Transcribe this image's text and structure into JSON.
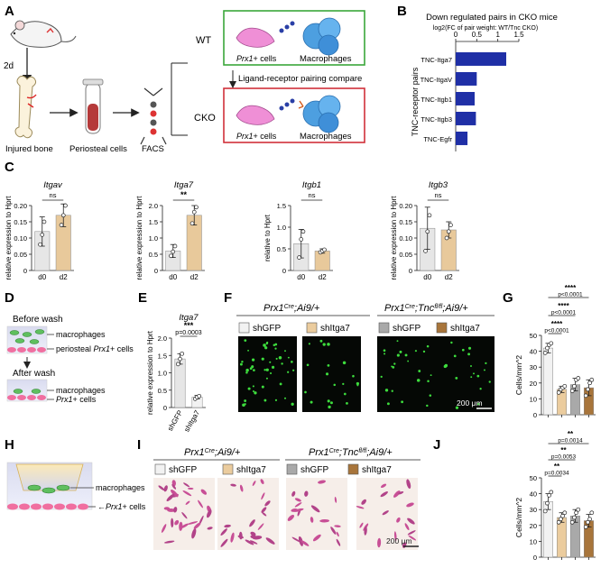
{
  "panels": {
    "A": {
      "label": "A",
      "days": "2d",
      "injured_bone": "Injured bone",
      "periosteal_cells": "Periosteal cells",
      "facs": "FACS",
      "wt": "WT",
      "cko": "CKO",
      "prx1_cells": "Prx1+ cells",
      "macrophages": "Macrophages",
      "compare": "Ligand-receptor pairing compare"
    },
    "B": {
      "label": "B"
    },
    "C": {
      "label": "C",
      "genes": [
        "Itgav",
        "Itga7",
        "Itgb1",
        "Itgb3"
      ]
    },
    "D": {
      "label": "D",
      "before_wash": "Before wash",
      "after_wash": "After wash",
      "macrophages": "macrophages",
      "periosteal_prx1": "periosteal Prx1+ cells",
      "prx1_cells": "Prx1+ cells"
    },
    "E": {
      "label": "E",
      "gene": "Itga7"
    },
    "F": {
      "label": "F",
      "group1": "Prx1Cre;Ai9/+",
      "group2": "Prx1Cre;Tncfl/fl;Ai9/+",
      "legend": [
        "shGFP",
        "shItga7",
        "shGFP",
        "shItga7"
      ],
      "scale": "200 μm"
    },
    "G": {
      "label": "G"
    },
    "H": {
      "label": "H",
      "macrophages": "macrophages",
      "prx1_cells": "Prx1+ cells"
    },
    "I": {
      "label": "I",
      "group1": "Prx1Cre;Ai9/+",
      "group2": "Prx1Cre;Tncfl/fl;Ai9/+",
      "legend": [
        "shGFP",
        "shItga7",
        "shGFP",
        "shItga7"
      ],
      "scale": "200 μm"
    },
    "J": {
      "label": "J"
    }
  },
  "colors": {
    "d0": "#e6e6e6",
    "d2": "#e8c99b",
    "bar_blue": "#1f2fa6",
    "shGFP_ctrl": "#f2f2f2",
    "shItga7_ctrl": "#ebcc9e",
    "shGFP_cko": "#a9a9a9",
    "shItga7_cko": "#a8753b",
    "wt_box": "#3aa63a",
    "cko_box": "#d0303a"
  },
  "chart_data": [
    {
      "id": "B",
      "type": "bar",
      "orientation": "horizontal",
      "title": "Down regulated pairs in CKO mice",
      "subtitle": "log2(FC of pair weight: WT/Tnc CKO)",
      "ylabel": "TNC-receptor pairs",
      "categories": [
        "TNC-Itga7",
        "TNC-ItgaV",
        "TNC-Itgb1",
        "TNC-Itgb3",
        "TNC-Egfr"
      ],
      "values": [
        1.2,
        0.5,
        0.45,
        0.48,
        0.28
      ],
      "xlim": [
        0,
        1.5
      ],
      "xticks": [
        "0",
        "0.5",
        "1",
        "1.5"
      ]
    },
    {
      "id": "C1",
      "type": "bar",
      "title": "Itgav",
      "ylabel": "relative expression  to Hprt",
      "categories": [
        "d0",
        "d2"
      ],
      "values": [
        0.12,
        0.17
      ],
      "errors": [
        0.045,
        0.035
      ],
      "points": [
        [
          0.08,
          0.11,
          0.15
        ],
        [
          0.14,
          0.17,
          0.2
        ]
      ],
      "ylim": [
        0,
        0.2
      ],
      "yticks": [
        "0",
        "0.05",
        "0.10",
        "0.15",
        "0.20"
      ],
      "sig": "ns"
    },
    {
      "id": "C2",
      "type": "bar",
      "title": "Itga7",
      "ylabel": "relative expression  to Hprt",
      "categories": [
        "d0",
        "d2"
      ],
      "values": [
        0.6,
        1.7
      ],
      "errors": [
        0.2,
        0.3
      ],
      "points": [
        [
          0.45,
          0.58,
          0.75
        ],
        [
          1.45,
          1.8,
          1.95
        ]
      ],
      "ylim": [
        0,
        2.0
      ],
      "yticks": [
        "0",
        "0.5",
        "1.0",
        "1.5",
        "2.0"
      ],
      "sig": "**"
    },
    {
      "id": "C3",
      "type": "bar",
      "title": "Itgb1",
      "ylabel": "relative        to Hprt",
      "categories": [
        "d0",
        "d2"
      ],
      "values": [
        0.62,
        0.45
      ],
      "errors": [
        0.33,
        0.05
      ],
      "points": [
        [
          0.3,
          0.72,
          0.9
        ],
        [
          0.42,
          0.45,
          0.48
        ]
      ],
      "ylim": [
        0,
        1.5
      ],
      "yticks": [
        "0",
        "0.5",
        "1.0",
        "1.5"
      ],
      "sig": "ns"
    },
    {
      "id": "C4",
      "type": "bar",
      "title": "Itgb3",
      "ylabel": "relative expression  to Hprt",
      "categories": [
        "d0",
        "d2"
      ],
      "values": [
        0.13,
        0.125
      ],
      "errors": [
        0.065,
        0.025
      ],
      "points": [
        [
          0.06,
          0.12,
          0.17
        ],
        [
          0.1,
          0.12,
          0.14
        ]
      ],
      "ylim": [
        0,
        0.2
      ],
      "yticks": [
        "0",
        "0.05",
        "0.10",
        "0.15",
        "0.20"
      ],
      "sig": "ns"
    },
    {
      "id": "E",
      "type": "bar",
      "title": "Itga7",
      "ylabel": "relative expression to Hprt",
      "categories": [
        "shGFP",
        "shItga7"
      ],
      "values": [
        1.4,
        0.3
      ],
      "errors": [
        0.15,
        0.05
      ],
      "points": [
        [
          1.25,
          1.4,
          1.55
        ],
        [
          0.25,
          0.3,
          0.33
        ]
      ],
      "ylim": [
        0,
        2.0
      ],
      "yticks": [
        "0",
        "0.5",
        "1.0",
        "1.5",
        "2.0"
      ],
      "sig": "***",
      "pvalue": "p=0.0003"
    },
    {
      "id": "G",
      "type": "bar",
      "ylabel": "Cells/mm^2",
      "categories": [
        "shGFP",
        "shItga7",
        "shGFP",
        "shItga7"
      ],
      "values": [
        42,
        16,
        19,
        17
      ],
      "errors": [
        3,
        2,
        4,
        5
      ],
      "points": [
        [
          39,
          42,
          44,
          45
        ],
        [
          14,
          16,
          17,
          18
        ],
        [
          15,
          18,
          22,
          23
        ],
        [
          12,
          16,
          20,
          22
        ]
      ],
      "ylim": [
        0,
        50
      ],
      "yticks": [
        "0",
        "10",
        "20",
        "30",
        "40",
        "50"
      ],
      "comparisons": [
        {
          "stars": "****",
          "p": "p<0.0001"
        },
        {
          "stars": "****",
          "p": "p<0.0001"
        },
        {
          "stars": "****",
          "p": "p<0.0001"
        }
      ]
    },
    {
      "id": "J",
      "type": "bar",
      "ylabel": "Cells/mm^2",
      "categories": [
        "shGFP",
        "shItga7",
        "shGFP",
        "shItga7"
      ],
      "values": [
        35,
        25,
        26,
        23
      ],
      "errors": [
        5,
        3,
        4,
        4
      ],
      "points": [
        [
          29,
          34,
          39,
          41
        ],
        [
          22,
          24,
          26,
          28
        ],
        [
          22,
          25,
          28,
          30
        ],
        [
          19,
          22,
          24,
          28
        ]
      ],
      "ylim": [
        0,
        50
      ],
      "yticks": [
        "0",
        "10",
        "20",
        "30",
        "40",
        "50"
      ],
      "comparisons": [
        {
          "stars": "**",
          "p": "p=0.0034"
        },
        {
          "stars": "**",
          "p": "p=0.0053"
        },
        {
          "stars": "**",
          "p": "p=0.0014"
        }
      ]
    }
  ]
}
